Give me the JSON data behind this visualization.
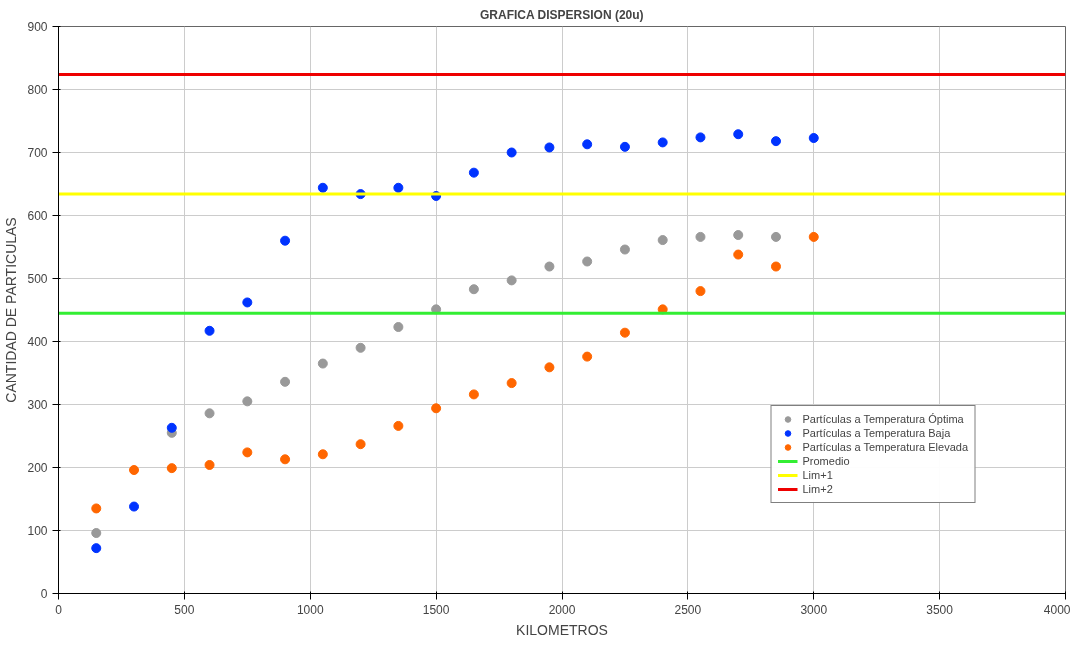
{
  "chart_data": {
    "type": "scatter",
    "title": "GRAFICA DISPERSION (20u)",
    "xlabel": "KILOMETROS",
    "ylabel": "CANTIDAD DE PARTICULAS",
    "x": [
      150,
      300,
      450,
      600,
      750,
      900,
      1050,
      1200,
      1350,
      1500,
      1650,
      1800,
      1950,
      2100,
      2250,
      2400,
      2550,
      2700,
      2850,
      3000
    ],
    "series": [
      {
        "name": "Partículas a Temperatura Óptima",
        "color": "#999999",
        "values": [
          96,
          null,
          255,
          286,
          305,
          336,
          365,
          390,
          423,
          451,
          483,
          497,
          519,
          527,
          546,
          561,
          566,
          569,
          566,
          null
        ]
      },
      {
        "name": "Partículas a Temperatura Baja",
        "color": "#0033ff",
        "values": [
          72,
          138,
          263,
          417,
          462,
          560,
          644,
          634,
          644,
          631,
          668,
          700,
          708,
          713,
          709,
          716,
          724,
          729,
          718,
          723
        ]
      },
      {
        "name": "Partículas a Temperatura Elevada",
        "color": "#ff6600",
        "values": [
          135,
          196,
          199,
          204,
          224,
          213,
          221,
          237,
          266,
          294,
          316,
          334,
          359,
          376,
          414,
          451,
          480,
          538,
          519,
          566
        ]
      }
    ],
    "ref_lines": [
      {
        "axis": "y",
        "value": 445,
        "label": "Promedio",
        "color": "#33ee33"
      },
      {
        "axis": "y",
        "value": 634,
        "label": "Lim+1",
        "color": "#ffff00"
      },
      {
        "axis": "y",
        "value": 824,
        "label": "Lim+2",
        "color": "#ee0000"
      }
    ],
    "xlim": [
      0,
      4000
    ],
    "ylim": [
      0,
      900
    ],
    "xticks": [
      0,
      500,
      1000,
      1500,
      2000,
      2500,
      3000,
      3500,
      4000
    ],
    "yticks": [
      0,
      100,
      200,
      300,
      400,
      500,
      600,
      700,
      800,
      900
    ],
    "grid": true,
    "legend": "bottom right",
    "marker": "circle"
  }
}
